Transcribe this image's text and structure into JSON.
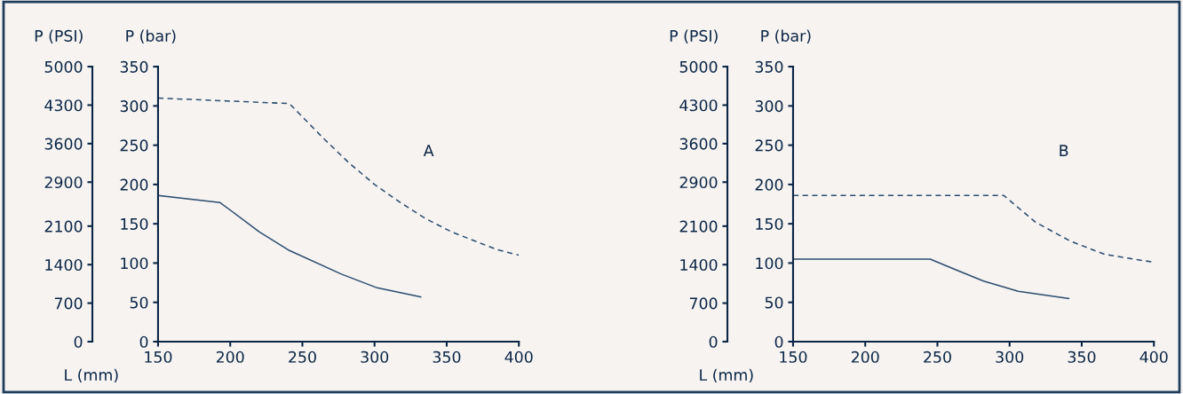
{
  "chart_data": [
    {
      "type": "line",
      "ylabel": "P (bar)",
      "y2label": "P (PSI)",
      "xlabel": "L (mm)",
      "annotations": [
        "A"
      ],
      "xlim": [
        150,
        400
      ],
      "xticks": [
        150,
        200,
        250,
        300,
        350,
        400
      ],
      "ylim": [
        0,
        350
      ],
      "yticks": [
        0,
        50,
        100,
        150,
        200,
        250,
        300,
        350
      ],
      "y2lim": [
        0,
        5000
      ],
      "y2ticks": [
        0,
        700,
        1400,
        2100,
        2900,
        3600,
        4300,
        5000
      ],
      "grid": false,
      "legend": false,
      "marker": "none",
      "series": [
        {
          "color": "#2e4d6e",
          "line_style": "solid",
          "x": [
            150,
            193,
            220,
            241,
            277,
            301,
            332
          ],
          "values": [
            186,
            177,
            140,
            116,
            86,
            69,
            57
          ]
        },
        {
          "color": "#2e4d6e",
          "line_style": "dashed",
          "x": [
            150,
            241,
            265,
            282,
            300,
            318,
            335,
            353,
            371,
            385,
            400
          ],
          "values": [
            310,
            303,
            258,
            228,
            200,
            177,
            157,
            140,
            127,
            117,
            110
          ]
        }
      ]
    },
    {
      "type": "line",
      "ylabel": "P (bar)",
      "y2label": "P (PSI)",
      "xlabel": "L (mm)",
      "annotations": [
        "B"
      ],
      "xlim": [
        150,
        400
      ],
      "xticks": [
        150,
        200,
        250,
        300,
        350,
        400
      ],
      "ylim": [
        0,
        350
      ],
      "yticks": [
        0,
        50,
        100,
        150,
        200,
        250,
        300,
        350
      ],
      "y2lim": [
        0,
        5000
      ],
      "y2ticks": [
        0,
        700,
        1400,
        2100,
        2900,
        3600,
        4300,
        5000
      ],
      "grid": false,
      "legend": false,
      "marker": "none",
      "series": [
        {
          "color": "#2e4d6e",
          "line_style": "solid",
          "x": [
            150,
            245,
            262,
            282,
            306,
            341
          ],
          "values": [
            105,
            105,
            92,
            77,
            64,
            55
          ]
        },
        {
          "color": "#2e4d6e",
          "line_style": "dashed",
          "x": [
            150,
            296,
            318,
            342,
            366,
            400
          ],
          "values": [
            186,
            186,
            152,
            128,
            111,
            101
          ]
        }
      ]
    }
  ]
}
